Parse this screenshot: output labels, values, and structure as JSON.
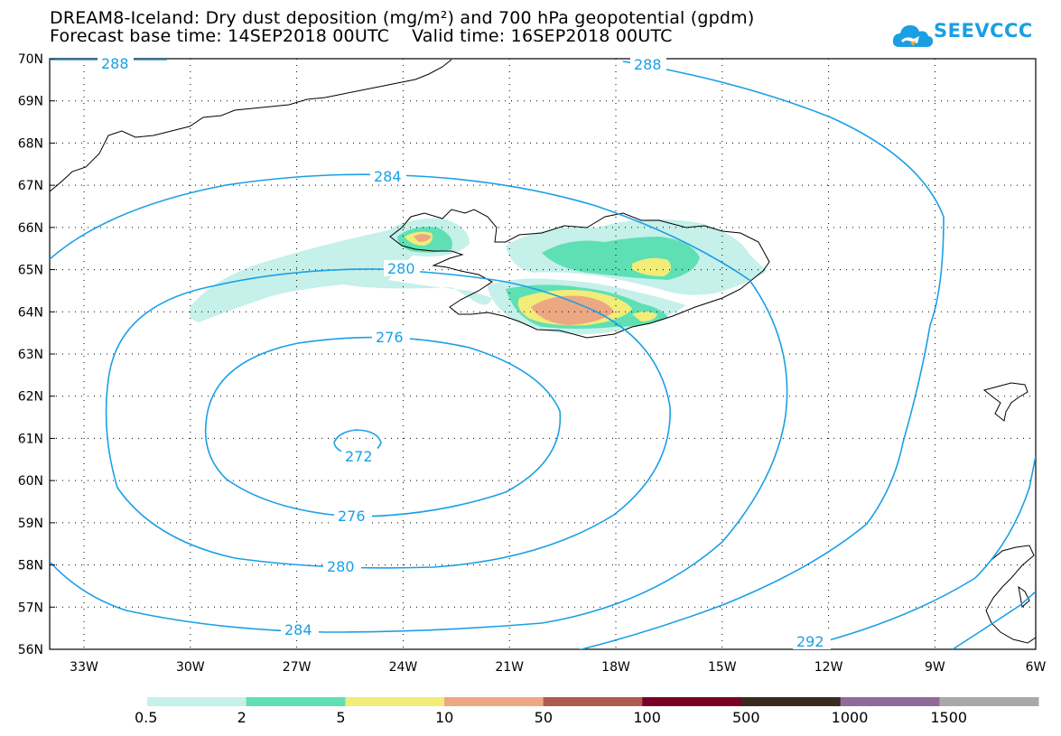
{
  "header": {
    "title_line1": "DREAM8-Iceland: Dry dust deposition (mg/m²) and 700 hPa geopotential (gpdm)",
    "forecast_label": "Forecast base time:",
    "forecast_time": "14SEP2018 00UTC",
    "valid_label": "Valid time:",
    "valid_time": "16SEP2018 00UTC"
  },
  "logo": {
    "text": "SEEVCCC",
    "icon": "cloud-icon",
    "color": "#1a9fe0"
  },
  "map": {
    "lat_ticks": [
      "70N",
      "69N",
      "68N",
      "67N",
      "66N",
      "65N",
      "64N",
      "63N",
      "62N",
      "61N",
      "60N",
      "59N",
      "58N",
      "57N",
      "56N"
    ],
    "lon_ticks": [
      "33W",
      "30W",
      "27W",
      "24W",
      "21W",
      "18W",
      "15W",
      "12W",
      "9W",
      "6W"
    ],
    "contour_color": "#1aa0e6",
    "contour_labels": [
      "288",
      "288",
      "284",
      "280",
      "276",
      "276",
      "272",
      "280",
      "284",
      "292"
    ]
  },
  "legend": {
    "colors": [
      "#c6f0ea",
      "#5fe0b4",
      "#f2ec78",
      "#eca882",
      "#b05a50",
      "#7a0026",
      "#3a2a1e",
      "#8f6a9a",
      "#a8a8a8"
    ],
    "labels": [
      "0.5",
      "2",
      "5",
      "10",
      "50",
      "100",
      "500",
      "1000",
      "1500"
    ]
  }
}
